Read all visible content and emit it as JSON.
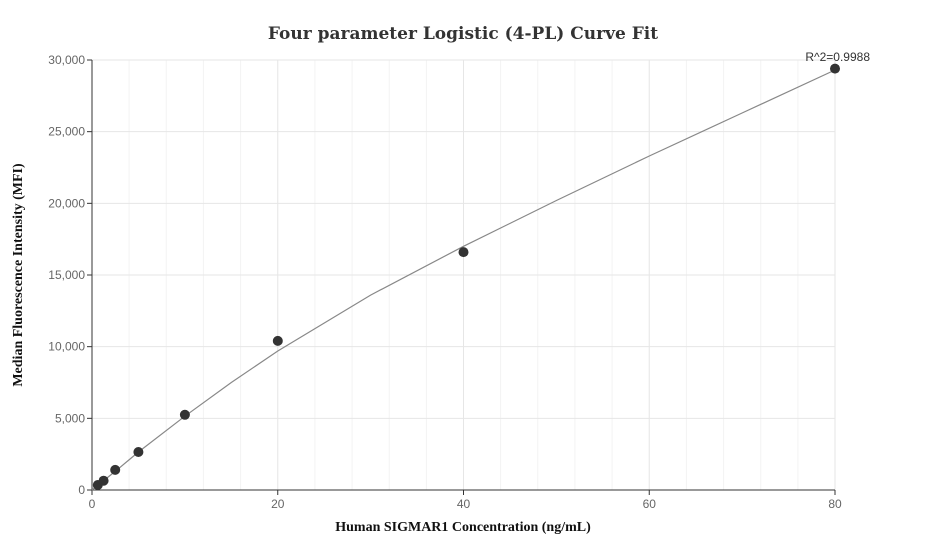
{
  "chart_data": {
    "type": "scatter",
    "title": "Four parameter Logistic (4-PL) Curve Fit",
    "xlabel": "Human SIGMAR1 Concentration (ng/mL)",
    "ylabel": "Median Fluorescence Intensity (MFI)",
    "xlim": [
      0,
      80
    ],
    "ylim": [
      0,
      30000
    ],
    "x_ticks": [
      0,
      20,
      40,
      60,
      80
    ],
    "x_tick_labels": [
      "0",
      "20",
      "40",
      "60",
      "80"
    ],
    "y_ticks": [
      0,
      5000,
      10000,
      15000,
      20000,
      25000,
      30000
    ],
    "y_tick_labels": [
      "0",
      "5,000",
      "10,000",
      "15,000",
      "20,000",
      "25,000",
      "30,000"
    ],
    "grid": true,
    "annotation": "R^2=0.9988",
    "series": [
      {
        "type": "scatter",
        "x": [
          0.625,
          1.25,
          2.5,
          5,
          10,
          20,
          40,
          80
        ],
        "y": [
          350,
          650,
          1400,
          2650,
          5250,
          10400,
          16600,
          29400
        ]
      },
      {
        "type": "line",
        "x": [
          0,
          1,
          2.5,
          5,
          10,
          15,
          20,
          30,
          40,
          50,
          60,
          70,
          80
        ],
        "y": [
          0,
          520,
          1300,
          2650,
          5150,
          7500,
          9700,
          13600,
          17000,
          20200,
          23300,
          26300,
          29300
        ]
      }
    ],
    "colors": {
      "points": "#333333",
      "curve": "#888888",
      "grid": "#e6e6e6"
    }
  }
}
